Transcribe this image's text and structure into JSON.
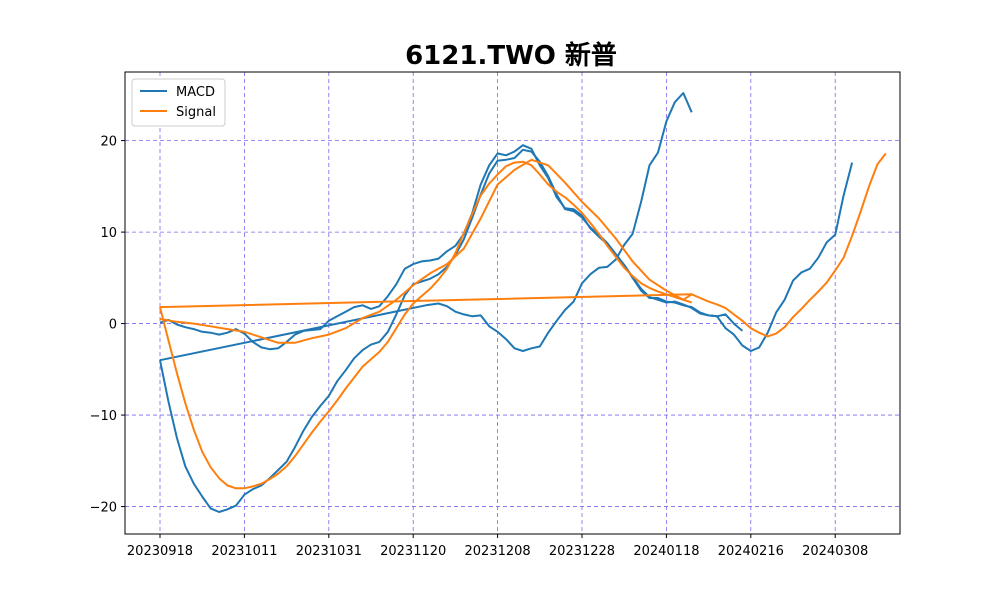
{
  "chart_data": {
    "type": "line",
    "title": "6121.TWO 新普",
    "xlabel": "",
    "ylabel": "",
    "x_ticks": [
      "20230918",
      "20231011",
      "20231031",
      "20231120",
      "20231208",
      "20231228",
      "20240118",
      "20240216",
      "20240308"
    ],
    "y_ticks": [
      -20,
      -10,
      0,
      10,
      20
    ],
    "ylim": [
      -23,
      27.5
    ],
    "grid": true,
    "legend_position": "top-left",
    "colors": {
      "MACD": "#1f77b4",
      "Signal": "#ff7f0e",
      "grid": "#7b68ee"
    },
    "series": [
      {
        "name": "MACD",
        "points": [
          [
            0,
            -4.0
          ],
          [
            6.3,
            2.0
          ],
          [
            6.3,
            2.0
          ],
          [
            6.6,
            2.2
          ],
          [
            6.8,
            1.9
          ],
          [
            7.0,
            1.3
          ],
          [
            7.2,
            1.0
          ],
          [
            7.4,
            0.8
          ],
          [
            7.6,
            0.9
          ],
          [
            7.8,
            -0.3
          ],
          [
            8.0,
            -0.9
          ],
          [
            8.2,
            -1.7
          ],
          [
            8.4,
            -2.7
          ],
          [
            8.6,
            -3.0
          ],
          [
            8.8,
            -2.7
          ],
          [
            9.0,
            -2.5
          ],
          [
            9.2,
            -1.0
          ],
          [
            9.4,
            0.3
          ],
          [
            9.6,
            1.5
          ],
          [
            9.8,
            2.4
          ],
          [
            10.0,
            4.4
          ],
          [
            10.2,
            5.4
          ],
          [
            10.4,
            6.1
          ],
          [
            10.6,
            6.2
          ],
          [
            10.8,
            7.0
          ],
          [
            11.0,
            8.6
          ],
          [
            11.2,
            9.8
          ],
          [
            11.4,
            13.3
          ],
          [
            11.6,
            17.3
          ],
          [
            11.8,
            18.7
          ],
          [
            12.0,
            22.1
          ],
          [
            12.2,
            24.2
          ],
          [
            12.4,
            25.2
          ],
          [
            12.6,
            23.1
          ]
        ]
      },
      {
        "name": "MACD",
        "points": [
          [
            0,
            0.1
          ],
          [
            0.2,
            0.4
          ],
          [
            0.4,
            -0.1
          ],
          [
            0.6,
            -0.4
          ],
          [
            0.8,
            -0.6
          ],
          [
            1.0,
            -0.9
          ],
          [
            1.2,
            -1.0
          ],
          [
            1.4,
            -1.2
          ],
          [
            1.6,
            -1.0
          ],
          [
            1.8,
            -0.6
          ],
          [
            2.0,
            -1.1
          ],
          [
            2.2,
            -2.0
          ],
          [
            2.4,
            -2.6
          ],
          [
            2.6,
            -2.8
          ],
          [
            2.8,
            -2.7
          ],
          [
            3.0,
            -2.0
          ],
          [
            3.2,
            -1.2
          ],
          [
            3.4,
            -0.8
          ],
          [
            3.6,
            -0.7
          ],
          [
            3.8,
            -0.6
          ],
          [
            4.0,
            0.3
          ],
          [
            4.2,
            0.8
          ],
          [
            4.4,
            1.3
          ],
          [
            4.6,
            1.8
          ],
          [
            4.8,
            2.0
          ],
          [
            5.0,
            1.6
          ],
          [
            5.2,
            1.9
          ],
          [
            5.4,
            3.0
          ],
          [
            5.6,
            4.3
          ],
          [
            5.8,
            6.0
          ],
          [
            6.0,
            6.5
          ],
          [
            6.2,
            6.8
          ],
          [
            6.4,
            6.9
          ],
          [
            6.6,
            7.1
          ],
          [
            6.8,
            7.9
          ],
          [
            7.0,
            8.5
          ],
          [
            7.2,
            9.8
          ],
          [
            7.4,
            12.1
          ],
          [
            7.6,
            15.2
          ],
          [
            7.8,
            17.3
          ],
          [
            8.0,
            18.6
          ],
          [
            8.2,
            18.4
          ],
          [
            8.4,
            18.8
          ],
          [
            8.6,
            19.5
          ],
          [
            8.8,
            19.1
          ],
          [
            9.0,
            17.3
          ],
          [
            9.2,
            15.9
          ],
          [
            9.4,
            13.8
          ],
          [
            9.6,
            12.6
          ],
          [
            9.8,
            12.5
          ],
          [
            10.0,
            11.8
          ],
          [
            10.2,
            10.4
          ],
          [
            10.4,
            9.5
          ],
          [
            10.6,
            8.7
          ],
          [
            10.8,
            7.5
          ],
          [
            11.0,
            6.4
          ],
          [
            11.2,
            5.0
          ],
          [
            11.4,
            3.6
          ],
          [
            11.6,
            2.8
          ],
          [
            11.8,
            2.8
          ],
          [
            12.0,
            2.4
          ],
          [
            12.2,
            2.3
          ],
          [
            12.4,
            2.0
          ],
          [
            12.6,
            1.8
          ],
          [
            12.6,
            1.8
          ],
          [
            12.8,
            1.2
          ],
          [
            13.0,
            0.9
          ],
          [
            13.2,
            0.8
          ],
          [
            13.4,
            1.0
          ],
          [
            13.6,
            0.0
          ],
          [
            13.8,
            -0.8
          ]
        ]
      },
      {
        "name": "MACD",
        "points": [
          [
            0,
            -4.0
          ],
          [
            0.2,
            -8.5
          ],
          [
            0.4,
            -12.5
          ],
          [
            0.6,
            -15.6
          ],
          [
            0.8,
            -17.5
          ],
          [
            1.0,
            -18.9
          ],
          [
            1.2,
            -20.2
          ],
          [
            1.4,
            -20.6
          ],
          [
            1.6,
            -20.3
          ],
          [
            1.8,
            -19.9
          ],
          [
            2.0,
            -18.7
          ],
          [
            2.2,
            -18.1
          ],
          [
            2.4,
            -17.7
          ],
          [
            2.6,
            -16.9
          ],
          [
            2.8,
            -16.0
          ],
          [
            3.0,
            -15.1
          ],
          [
            3.2,
            -13.5
          ],
          [
            3.4,
            -11.7
          ],
          [
            3.6,
            -10.2
          ],
          [
            3.8,
            -9.0
          ],
          [
            4.0,
            -7.9
          ],
          [
            4.2,
            -6.3
          ],
          [
            4.4,
            -5.1
          ],
          [
            4.6,
            -3.8
          ],
          [
            4.8,
            -2.9
          ],
          [
            5.0,
            -2.3
          ],
          [
            5.2,
            -2.0
          ],
          [
            5.4,
            -0.9
          ],
          [
            5.6,
            1.0
          ],
          [
            5.8,
            3.1
          ],
          [
            6.0,
            4.3
          ],
          [
            6.2,
            4.6
          ],
          [
            6.4,
            4.9
          ],
          [
            6.6,
            5.4
          ],
          [
            6.8,
            6.2
          ],
          [
            7.0,
            7.5
          ],
          [
            7.2,
            9.2
          ],
          [
            7.4,
            11.6
          ],
          [
            7.6,
            14.1
          ],
          [
            7.8,
            16.4
          ],
          [
            8.0,
            17.8
          ],
          [
            8.2,
            17.9
          ],
          [
            8.4,
            18.1
          ],
          [
            8.6,
            19.0
          ],
          [
            8.8,
            18.8
          ],
          [
            9.0,
            17.7
          ],
          [
            9.2,
            16.1
          ],
          [
            9.4,
            14.1
          ],
          [
            9.6,
            12.5
          ],
          [
            9.8,
            12.3
          ],
          [
            10.0,
            11.6
          ],
          [
            10.2,
            10.5
          ],
          [
            10.4,
            9.7
          ],
          [
            10.6,
            8.8
          ],
          [
            10.8,
            7.6
          ],
          [
            11.0,
            6.4
          ],
          [
            11.2,
            5.1
          ],
          [
            11.4,
            3.8
          ],
          [
            11.6,
            2.9
          ],
          [
            11.8,
            2.6
          ],
          [
            12.0,
            2.3
          ],
          [
            12.2,
            2.4
          ],
          [
            12.4,
            2.1
          ],
          [
            12.6,
            1.7
          ],
          [
            12.6,
            1.7
          ],
          [
            12.8,
            1.1
          ],
          [
            13.0,
            0.9
          ],
          [
            13.2,
            0.8
          ],
          [
            13.4,
            -0.5
          ],
          [
            13.6,
            -1.2
          ],
          [
            13.8,
            -2.4
          ],
          [
            14.0,
            -3.0
          ],
          [
            14.2,
            -2.6
          ],
          [
            14.4,
            -1.0
          ],
          [
            14.6,
            1.2
          ],
          [
            14.8,
            2.6
          ],
          [
            15.0,
            4.7
          ],
          [
            15.2,
            5.6
          ],
          [
            15.4,
            6.0
          ],
          [
            15.6,
            7.2
          ],
          [
            15.8,
            8.9
          ],
          [
            16.0,
            9.7
          ],
          [
            16.2,
            14.0
          ],
          [
            16.4,
            17.6
          ]
        ]
      },
      {
        "name": "Signal",
        "points": [
          [
            0,
            1.8
          ],
          [
            12.6,
            3.2
          ],
          [
            12.6,
            3.2
          ],
          [
            12.8,
            2.8
          ],
          [
            13.0,
            2.4
          ],
          [
            13.2,
            2.1
          ],
          [
            13.4,
            1.7
          ],
          [
            13.6,
            1.0
          ],
          [
            13.8,
            0.3
          ],
          [
            14.0,
            -0.5
          ],
          [
            14.2,
            -1.0
          ],
          [
            14.4,
            -1.4
          ],
          [
            14.6,
            -1.1
          ],
          [
            14.8,
            -0.4
          ],
          [
            15.0,
            0.7
          ],
          [
            15.2,
            1.6
          ],
          [
            15.4,
            2.6
          ],
          [
            15.6,
            3.5
          ],
          [
            15.8,
            4.5
          ],
          [
            16.0,
            5.8
          ],
          [
            16.2,
            7.2
          ],
          [
            16.4,
            9.6
          ],
          [
            16.6,
            12.2
          ],
          [
            16.8,
            15.0
          ],
          [
            17.0,
            17.4
          ],
          [
            17.2,
            18.6
          ]
        ]
      },
      {
        "name": "Signal",
        "points": [
          [
            0,
            0.5
          ],
          [
            0.4,
            0.2
          ],
          [
            0.8,
            0.0
          ],
          [
            1.2,
            -0.3
          ],
          [
            1.6,
            -0.6
          ],
          [
            2.0,
            -0.9
          ],
          [
            2.4,
            -1.5
          ],
          [
            2.8,
            -2.1
          ],
          [
            3.2,
            -2.1
          ],
          [
            3.6,
            -1.6
          ],
          [
            4.0,
            -1.2
          ],
          [
            4.4,
            -0.5
          ],
          [
            4.8,
            0.6
          ],
          [
            5.2,
            1.3
          ],
          [
            5.6,
            2.6
          ],
          [
            6.0,
            4.2
          ],
          [
            6.4,
            5.5
          ],
          [
            6.8,
            6.5
          ],
          [
            7.2,
            8.2
          ],
          [
            7.6,
            11.5
          ],
          [
            8.0,
            15.2
          ],
          [
            8.4,
            16.8
          ],
          [
            8.8,
            17.9
          ],
          [
            9.2,
            17.3
          ],
          [
            9.6,
            15.4
          ],
          [
            10.0,
            13.3
          ],
          [
            10.4,
            11.5
          ],
          [
            10.8,
            9.3
          ],
          [
            11.2,
            6.8
          ],
          [
            11.6,
            4.8
          ],
          [
            12.0,
            3.6
          ],
          [
            12.4,
            2.6
          ],
          [
            12.6,
            2.3
          ]
        ]
      },
      {
        "name": "Signal",
        "points": [
          [
            0,
            1.8
          ],
          [
            0.2,
            -1.8
          ],
          [
            0.4,
            -5.4
          ],
          [
            0.6,
            -8.7
          ],
          [
            0.8,
            -11.6
          ],
          [
            1.0,
            -14.0
          ],
          [
            1.2,
            -15.7
          ],
          [
            1.4,
            -16.9
          ],
          [
            1.6,
            -17.7
          ],
          [
            1.8,
            -18.0
          ],
          [
            2.0,
            -18.0
          ],
          [
            2.2,
            -17.8
          ],
          [
            2.4,
            -17.5
          ],
          [
            2.6,
            -17.0
          ],
          [
            2.8,
            -16.4
          ],
          [
            3.0,
            -15.6
          ],
          [
            3.2,
            -14.5
          ],
          [
            3.4,
            -13.2
          ],
          [
            3.6,
            -11.9
          ],
          [
            3.8,
            -10.7
          ],
          [
            4.0,
            -9.6
          ],
          [
            4.2,
            -8.4
          ],
          [
            4.4,
            -7.1
          ],
          [
            4.6,
            -5.9
          ],
          [
            4.8,
            -4.7
          ],
          [
            5.0,
            -3.9
          ],
          [
            5.2,
            -3.1
          ],
          [
            5.4,
            -2.0
          ],
          [
            5.6,
            -0.5
          ],
          [
            5.8,
            1.0
          ],
          [
            6.0,
            2.2
          ],
          [
            6.2,
            3.0
          ],
          [
            6.4,
            3.8
          ],
          [
            6.6,
            4.8
          ],
          [
            6.8,
            6.0
          ],
          [
            7.0,
            7.7
          ],
          [
            7.2,
            9.9
          ],
          [
            7.4,
            12.0
          ],
          [
            7.6,
            14.0
          ],
          [
            7.8,
            15.3
          ],
          [
            8.0,
            16.3
          ],
          [
            8.2,
            17.2
          ],
          [
            8.4,
            17.6
          ],
          [
            8.6,
            17.7
          ],
          [
            8.8,
            17.3
          ],
          [
            9.0,
            16.3
          ],
          [
            9.2,
            15.2
          ],
          [
            9.4,
            14.4
          ],
          [
            9.6,
            13.8
          ],
          [
            9.8,
            13.0
          ],
          [
            10.0,
            12.1
          ],
          [
            10.2,
            11.0
          ],
          [
            10.4,
            9.8
          ],
          [
            10.6,
            8.5
          ],
          [
            10.8,
            7.3
          ],
          [
            11.0,
            6.1
          ],
          [
            11.2,
            5.2
          ],
          [
            11.4,
            4.4
          ],
          [
            11.6,
            3.9
          ],
          [
            11.8,
            3.5
          ],
          [
            12.0,
            3.2
          ],
          [
            12.2,
            2.9
          ],
          [
            12.4,
            2.6
          ],
          [
            12.6,
            3.2
          ]
        ]
      }
    ]
  }
}
